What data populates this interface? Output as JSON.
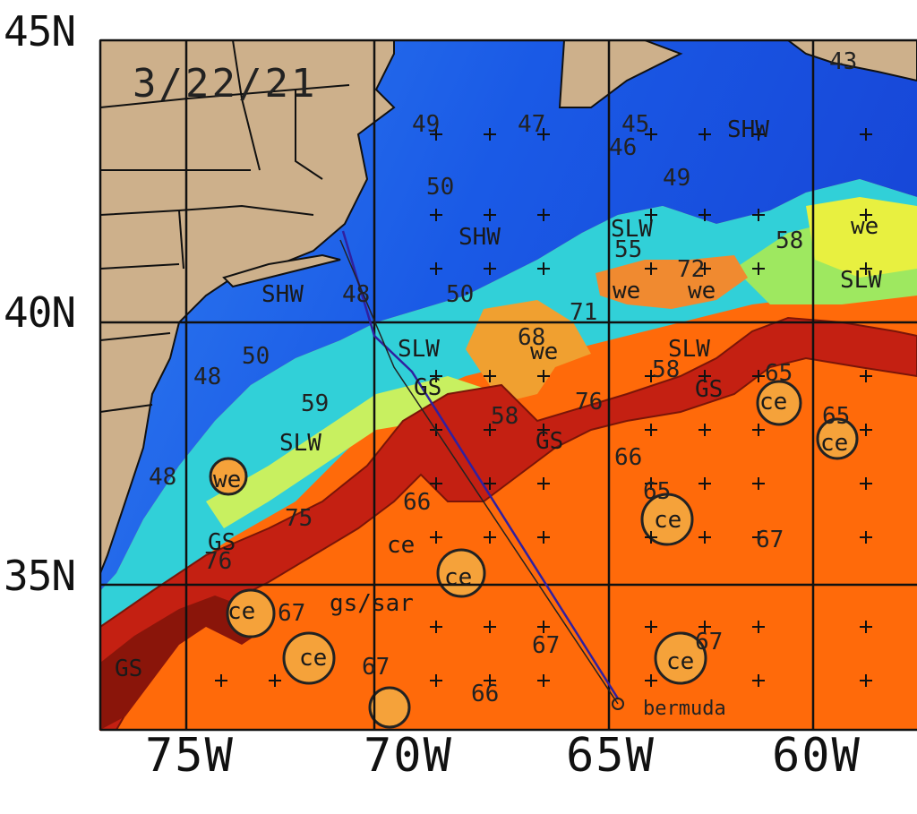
{
  "date": "3/22/21",
  "lat_labels": [
    "45N",
    "40N",
    "35N"
  ],
  "lon_labels": [
    "75W",
    "70W",
    "65W",
    "60W"
  ],
  "place": "bermuda",
  "water_masses": [
    "SHW",
    "SHW",
    "SHW",
    "SLW",
    "SLW",
    "SLW",
    "SLW",
    "SLW",
    "GS",
    "GS",
    "GS",
    "GS",
    "GS",
    "gs/sar"
  ],
  "eddies": [
    "we",
    "we",
    "we",
    "we",
    "we",
    "ce",
    "ce",
    "ce",
    "ce",
    "ce",
    "ce",
    "ce",
    "ce"
  ],
  "temperatures": [
    "49",
    "47",
    "45",
    "46",
    "50",
    "49",
    "58",
    "55",
    "72",
    "50",
    "48",
    "71",
    "68",
    "59",
    "58",
    "76",
    "58",
    "65",
    "65",
    "66",
    "66",
    "65",
    "75",
    "76",
    "67",
    "67",
    "67",
    "67",
    "66",
    "48",
    "50",
    "48",
    "43",
    "67"
  ]
}
